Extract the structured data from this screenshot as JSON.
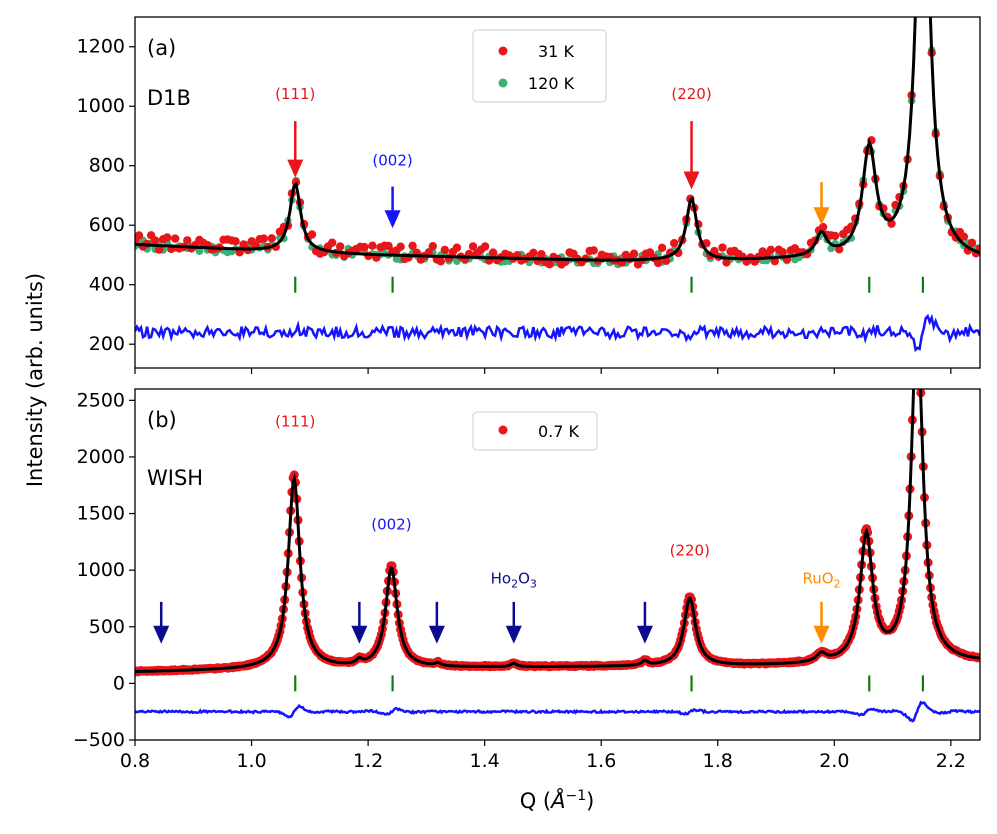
{
  "chart_data": {
    "type": "line",
    "ylabel": "Intensity (arb. units)",
    "xlabel_main": "Q (",
    "xlabel_unit": "Å",
    "xlabel_exp": "−1",
    "xlabel_close": ")",
    "xlim": [
      0.8,
      2.25
    ],
    "x_ticks": [
      0.8,
      1.0,
      1.2,
      1.4,
      1.6,
      1.8,
      2.0,
      2.2
    ],
    "colors": {
      "red": "#e8161a",
      "green": "#3daf77",
      "blue": "#1414ff",
      "navy": "#0b0b8f",
      "orange": "#ff8c00",
      "black": "#000000",
      "tickmark": "#127a12"
    },
    "panels": [
      {
        "label": "(a)",
        "instrument": "D1B",
        "ylim": [
          120,
          1300
        ],
        "y_ticks": [
          200,
          400,
          600,
          800,
          1000,
          1200
        ],
        "legend": [
          "31 K",
          "120 K"
        ],
        "series": [
          {
            "name": "31 K",
            "style": "points",
            "color": "#e8161a"
          },
          {
            "name": "120 K",
            "style": "points",
            "color": "#3daf77"
          },
          {
            "name": "fit",
            "style": "line",
            "color": "#000000"
          },
          {
            "name": "difference",
            "style": "line",
            "color": "#1414ff"
          }
        ],
        "background": {
          "points": [
            [
              0.8,
              535
            ],
            [
              1.0,
              515
            ],
            [
              1.2,
              500
            ],
            [
              1.4,
              490
            ],
            [
              1.6,
              480
            ],
            [
              1.8,
              478
            ],
            [
              2.0,
              485
            ],
            [
              2.25,
              475
            ]
          ]
        },
        "peaks": [
          {
            "center": 1.075,
            "height": 230,
            "width": 0.011
          },
          {
            "center": 1.755,
            "height": 210,
            "width": 0.011
          },
          {
            "center": 1.978,
            "height": 75,
            "width": 0.011
          },
          {
            "center": 2.06,
            "height": 360,
            "width": 0.014
          },
          {
            "center": 2.152,
            "height": 1500,
            "width": 0.014
          }
        ],
        "difference_offset": 240,
        "bragg_positions": [
          1.075,
          1.242,
          1.755,
          2.06,
          2.152
        ],
        "bragg_y": 400,
        "annotations": [
          {
            "text": "(111)",
            "x": 1.075,
            "y": 1025,
            "color": "#e8161a",
            "arrow_from": 950,
            "arrow_to": 760
          },
          {
            "text": "(002)",
            "x": 1.242,
            "y": 800,
            "color": "#1414ff",
            "arrow_from": 730,
            "arrow_to": 590
          },
          {
            "text": "(220)",
            "x": 1.755,
            "y": 1025,
            "color": "#e8161a",
            "arrow_from": 950,
            "arrow_to": 720
          },
          {
            "text": "",
            "x": 1.978,
            "y": 0,
            "color": "#ff8c00",
            "arrow_from": 745,
            "arrow_to": 600
          }
        ]
      },
      {
        "label": "(b)",
        "instrument": "WISH",
        "ylim": [
          -500,
          2600
        ],
        "y_ticks": [
          -500,
          0,
          500,
          1000,
          1500,
          2000,
          2500
        ],
        "y_tick_labels": [
          "−500",
          "0",
          "500",
          "1000",
          "1500",
          "2000",
          "2500"
        ],
        "legend": [
          "0.7 K"
        ],
        "series": [
          {
            "name": "0.7 K",
            "style": "points",
            "color": "#e8161a"
          },
          {
            "name": "fit",
            "style": "line",
            "color": "#000000"
          },
          {
            "name": "difference",
            "style": "line",
            "color": "#1414ff"
          }
        ],
        "background": {
          "points": [
            [
              0.8,
              100
            ],
            [
              1.0,
              120
            ],
            [
              1.4,
              140
            ],
            [
              1.8,
              150
            ],
            [
              2.0,
              160
            ],
            [
              2.25,
              180
            ]
          ]
        },
        "peaks": [
          {
            "center": 1.073,
            "height": 1680,
            "width": 0.012
          },
          {
            "center": 1.24,
            "height": 880,
            "width": 0.012
          },
          {
            "center": 1.752,
            "height": 600,
            "width": 0.012
          },
          {
            "center": 2.055,
            "height": 1120,
            "width": 0.013
          },
          {
            "center": 2.142,
            "height": 3000,
            "width": 0.012
          },
          {
            "center": 1.978,
            "height": 70,
            "width": 0.01
          },
          {
            "center": 1.185,
            "height": 40,
            "width": 0.006
          },
          {
            "center": 1.32,
            "height": 25,
            "width": 0.006
          },
          {
            "center": 1.45,
            "height": 30,
            "width": 0.006
          },
          {
            "center": 1.675,
            "height": 40,
            "width": 0.006
          }
        ],
        "difference_offset": -250,
        "bragg_positions": [
          1.075,
          1.242,
          1.755,
          2.06,
          2.152
        ],
        "bragg_y": 0,
        "annotations": [
          {
            "text": "(111)",
            "x": 1.075,
            "y": 2270,
            "color": "#e8161a"
          },
          {
            "text": "(002)",
            "x": 1.24,
            "y": 1360,
            "color": "#1414ff"
          },
          {
            "text": "(220)",
            "x": 1.752,
            "y": 1130,
            "color": "#e8161a"
          },
          {
            "text": "RuO",
            "sub": "2",
            "x": 1.978,
            "y": 880,
            "color": "#ff8c00",
            "arrow_from": 720,
            "arrow_to": 350
          },
          {
            "text": "Ho",
            "sub": "2",
            "mid": "O",
            "sub2": "3",
            "x": 1.45,
            "y": 880,
            "color": "#0b0b8f",
            "arrow_from": 720,
            "arrow_to": 350
          }
        ],
        "impurity_arrows": [
          0.845,
          1.185,
          1.318,
          1.675
        ]
      }
    ]
  }
}
